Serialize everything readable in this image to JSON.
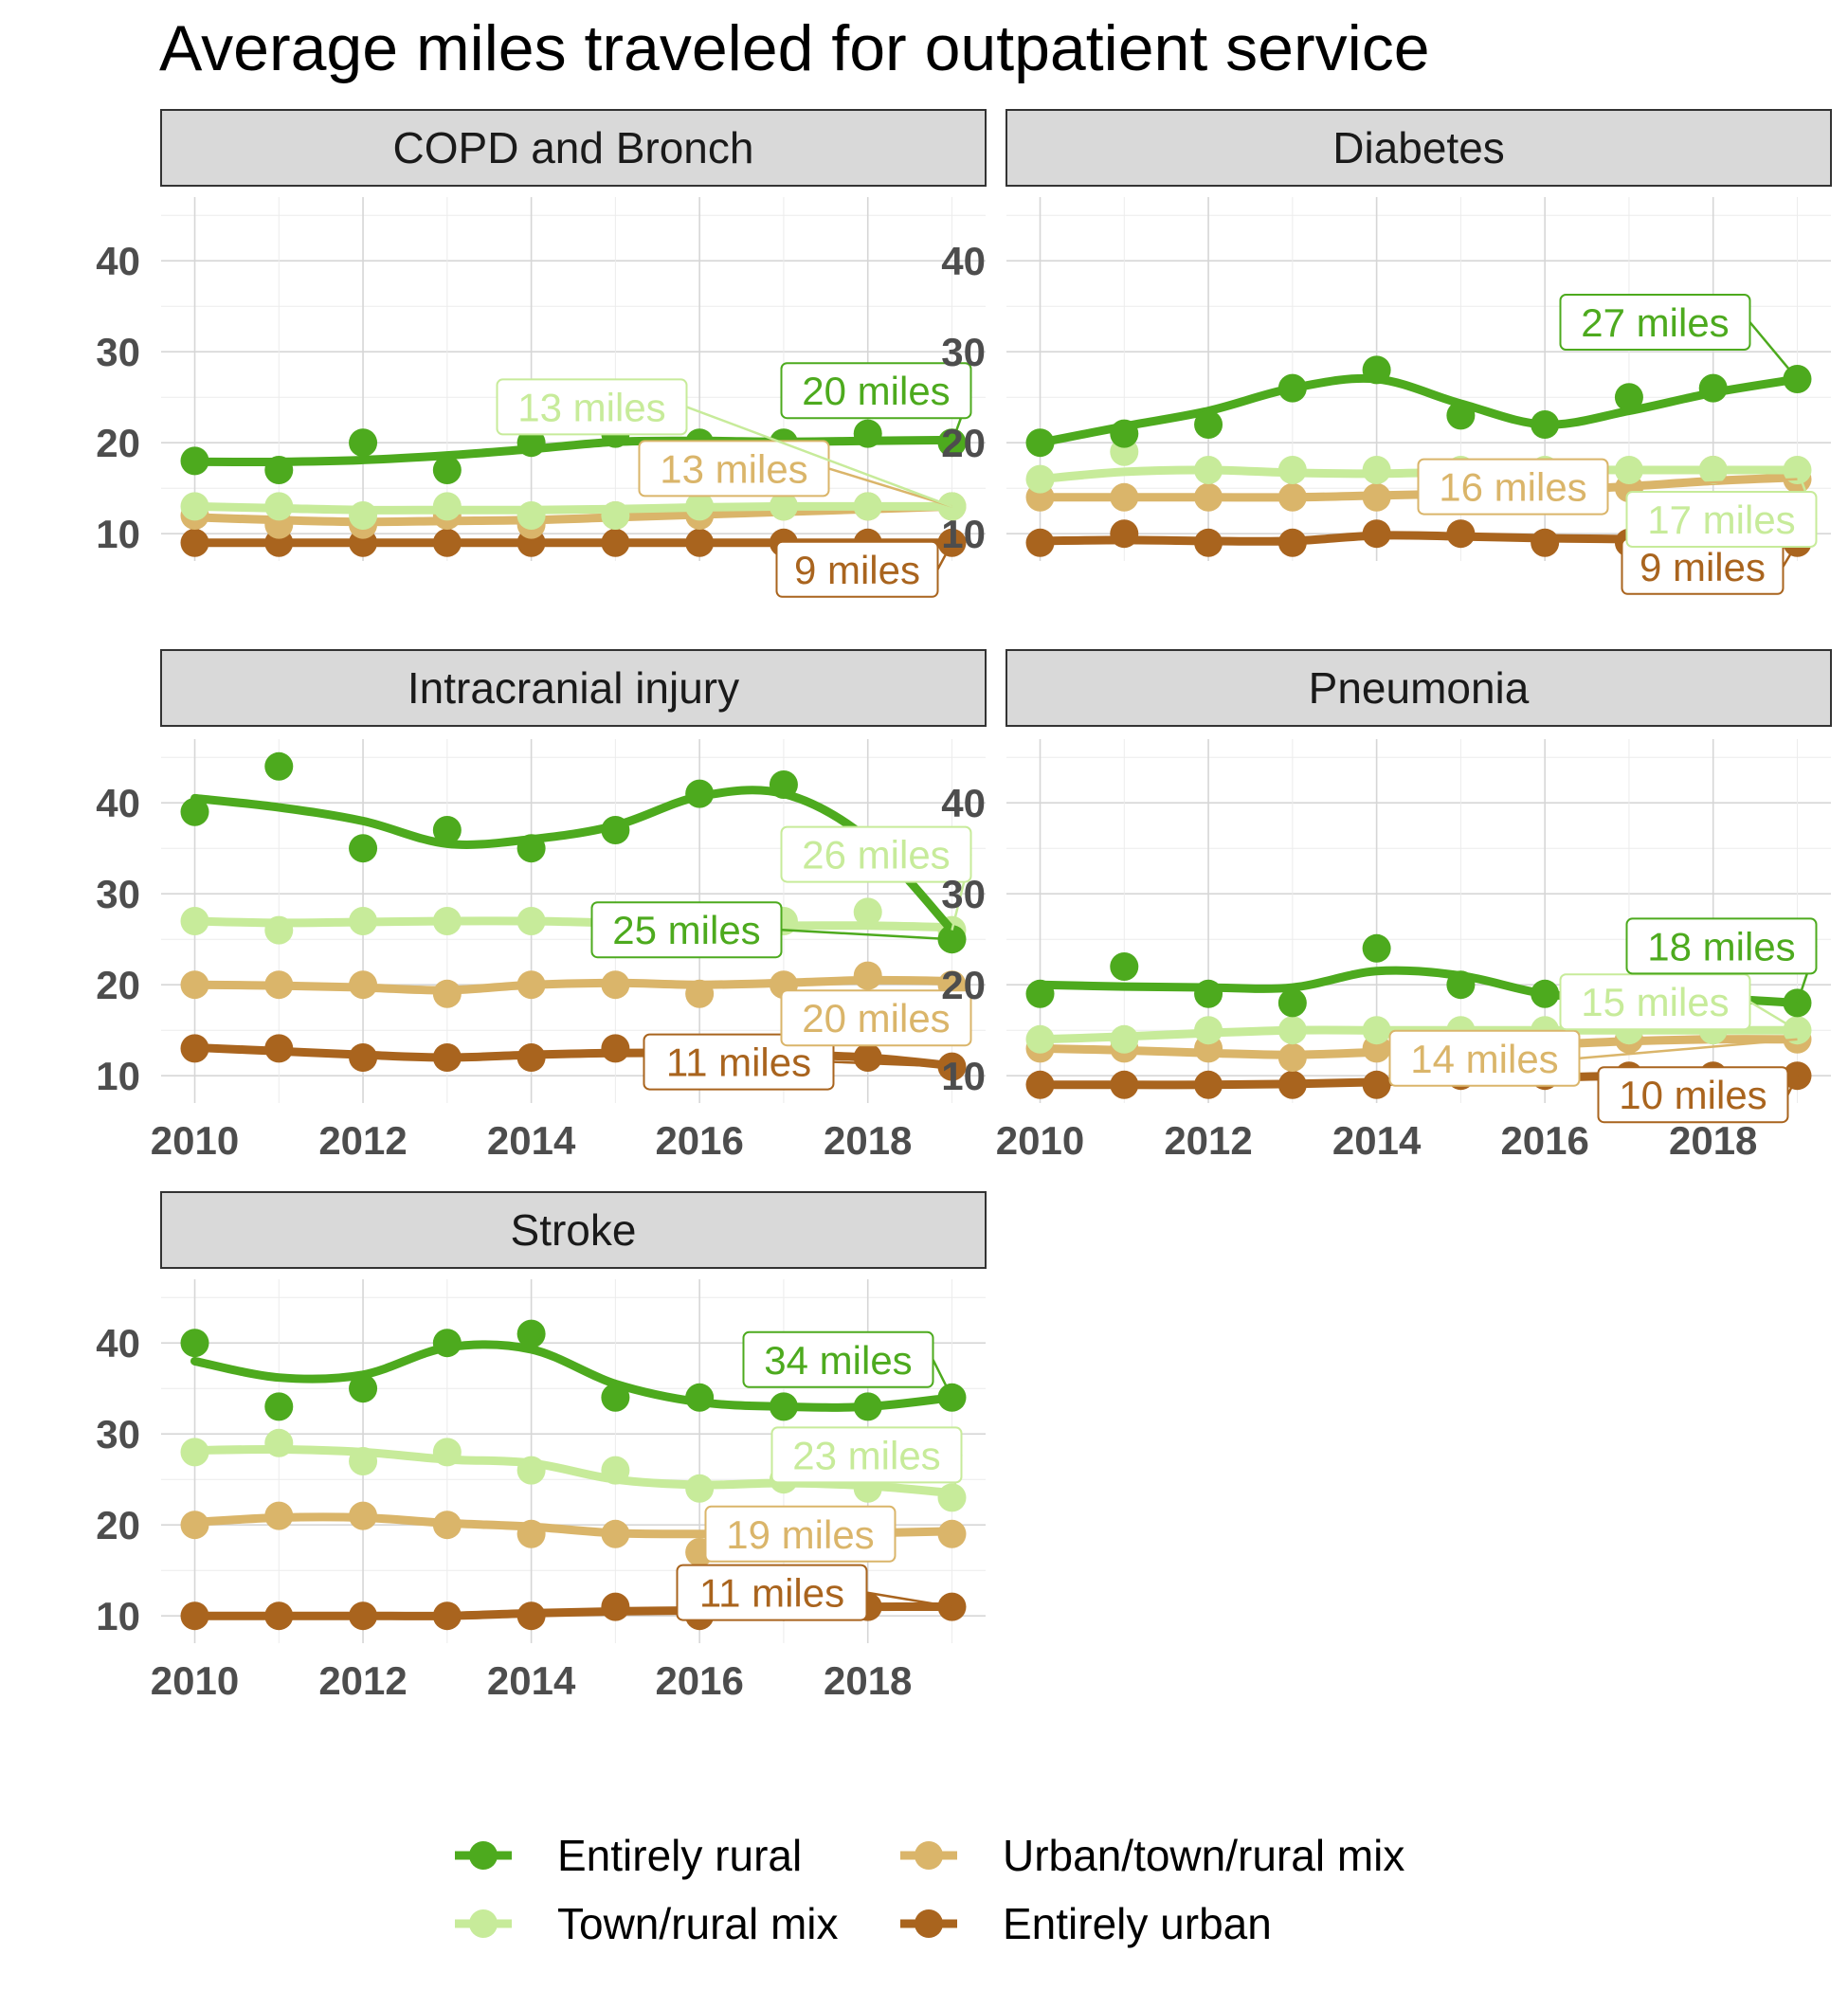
{
  "chart_data": {
    "type": "line",
    "title": "Average miles traveled for outpatient service",
    "xlabel": "",
    "ylabel": "",
    "x": [
      2010,
      2011,
      2012,
      2013,
      2014,
      2015,
      2016,
      2017,
      2018,
      2019
    ],
    "xticks": [
      2010,
      2012,
      2014,
      2016,
      2018
    ],
    "yticks": [
      10,
      20,
      30,
      40
    ],
    "ylim": [
      7,
      47
    ],
    "xlim": [
      2009.6,
      2019.4
    ],
    "grid": true,
    "legend_position": "bottom",
    "legend": [
      {
        "name": "Entirely rural",
        "color": "#4daa1e"
      },
      {
        "name": "Urban/town/rural mix",
        "color": "#dab56a"
      },
      {
        "name": "Town/rural mix",
        "color": "#c7eb9a"
      },
      {
        "name": "Entirely urban",
        "color": "#a9641e"
      }
    ],
    "panels": [
      {
        "title": "COPD and Bronch",
        "series": [
          {
            "name": "Entirely rural",
            "values": [
              18,
              17,
              20,
              17,
              20,
              21,
              20,
              20,
              21,
              20
            ],
            "trend": [
              17.9,
              17.9,
              18.1,
              18.6,
              19.3,
              20.1,
              20.2,
              20.1,
              20.2,
              20.3
            ],
            "label": "20 miles"
          },
          {
            "name": "Town/rural mix",
            "values": [
              13,
              13,
              12,
              13,
              12,
              12,
              13,
              13,
              13,
              13
            ],
            "trend": [
              13.0,
              12.8,
              12.6,
              12.6,
              12.6,
              12.7,
              12.9,
              13.0,
              13.0,
              13.0
            ],
            "label": "13 miles"
          },
          {
            "name": "Urban/town/rural mix",
            "values": [
              12,
              11,
              11,
              12,
              11,
              12,
              12,
              13,
              13,
              13
            ],
            "trend": [
              11.8,
              11.5,
              11.3,
              11.4,
              11.5,
              11.8,
              12.1,
              12.4,
              12.7,
              13.0
            ],
            "label": "13 miles"
          },
          {
            "name": "Entirely urban",
            "values": [
              9,
              9,
              9,
              9,
              9,
              9,
              9,
              9,
              9,
              9
            ],
            "trend": [
              9,
              9,
              9,
              9,
              9,
              9,
              9,
              9,
              9,
              9
            ],
            "label": "9 miles"
          }
        ]
      },
      {
        "title": "Diabetes",
        "series": [
          {
            "name": "Entirely rural",
            "values": [
              20,
              21,
              22,
              26,
              28,
              23,
              22,
              25,
              26,
              27
            ],
            "trend": [
              20.0,
              21.8,
              23.5,
              26.0,
              27.0,
              24.3,
              22.0,
              23.5,
              25.5,
              27.0
            ],
            "label": "27 miles"
          },
          {
            "name": "Town/rural mix",
            "values": [
              16,
              19,
              17,
              17,
              17,
              17,
              17,
              17,
              17,
              17
            ],
            "trend": [
              16.0,
              16.8,
              17.0,
              16.7,
              16.6,
              16.8,
              17.0,
              17.0,
              17.0,
              17.0
            ],
            "label": "17 miles"
          },
          {
            "name": "Urban/town/rural mix",
            "values": [
              14,
              14,
              14,
              14,
              14,
              14,
              14,
              15,
              17,
              16
            ],
            "trend": [
              14.0,
              14.0,
              14.0,
              14.0,
              14.2,
              14.4,
              14.7,
              15.2,
              15.8,
              16.2
            ],
            "label": "16 miles"
          },
          {
            "name": "Entirely urban",
            "values": [
              9,
              10,
              9,
              9,
              10,
              10,
              9,
              9,
              9,
              9
            ],
            "trend": [
              9.2,
              9.3,
              9.2,
              9.2,
              9.8,
              9.7,
              9.5,
              9.4,
              9.3,
              9.1
            ],
            "label": "9 miles"
          }
        ]
      },
      {
        "title": "Intracranial injury",
        "series": [
          {
            "name": "Entirely rural",
            "values": [
              39,
              44,
              35,
              37,
              35,
              37,
              41,
              42,
              35,
              25
            ],
            "trend": [
              40.5,
              39.5,
              38.0,
              35.5,
              36.0,
              37.5,
              40.7,
              41.0,
              36.0,
              26.0
            ],
            "label": "25 miles"
          },
          {
            "name": "Town/rural mix",
            "values": [
              27,
              26,
              27,
              27,
              27,
              27,
              27,
              27,
              28,
              26
            ],
            "trend": [
              27.0,
              26.8,
              26.9,
              27.0,
              27.0,
              26.8,
              26.6,
              26.5,
              26.5,
              26.3
            ],
            "label": "26 miles"
          },
          {
            "name": "Urban/town/rural mix",
            "values": [
              20,
              20,
              20,
              19,
              20,
              20,
              19,
              20,
              21,
              20
            ],
            "trend": [
              20.0,
              19.9,
              19.7,
              19.4,
              20.0,
              20.2,
              20.0,
              20.2,
              20.5,
              20.4
            ],
            "label": "20 miles"
          },
          {
            "name": "Entirely urban",
            "values": [
              13,
              13,
              12,
              12,
              12,
              13,
              12,
              12,
              12,
              11
            ],
            "trend": [
              13.1,
              12.7,
              12.3,
              12.0,
              12.3,
              12.5,
              12.5,
              12.3,
              12.0,
              11.1
            ],
            "label": "11 miles"
          }
        ]
      },
      {
        "title": "Pneumonia",
        "series": [
          {
            "name": "Entirely rural",
            "values": [
              19,
              22,
              19,
              18,
              24,
              20,
              19,
              18,
              19,
              18
            ],
            "trend": [
              20.0,
              19.8,
              19.7,
              19.7,
              21.5,
              21.0,
              19.0,
              18.5,
              18.5,
              18.0
            ],
            "label": "18 miles"
          },
          {
            "name": "Town/rural mix",
            "values": [
              14,
              14,
              15,
              15,
              15,
              15,
              15,
              15,
              15,
              15
            ],
            "trend": [
              14.0,
              14.3,
              14.7,
              15.0,
              15.0,
              15.0,
              15.0,
              15.0,
              15.0,
              15.0
            ],
            "label": "15 miles"
          },
          {
            "name": "Urban/town/rural mix",
            "values": [
              13,
              13,
              13,
              12,
              13,
              14,
              14,
              14,
              15,
              14
            ],
            "trend": [
              13.0,
              12.8,
              12.5,
              12.3,
              12.6,
              13.0,
              13.4,
              13.8,
              14.0,
              14.0
            ],
            "label": "14 miles"
          },
          {
            "name": "Entirely urban",
            "values": [
              9,
              9,
              9,
              9,
              9,
              10,
              10,
              10,
              10,
              10
            ],
            "trend": [
              9.0,
              9.0,
              9.0,
              9.1,
              9.3,
              9.6,
              9.8,
              10.0,
              10.0,
              10.0
            ],
            "label": "10 miles"
          }
        ]
      },
      {
        "title": "Stroke",
        "series": [
          {
            "name": "Entirely rural",
            "values": [
              40,
              33,
              35,
              40,
              41,
              34,
              34,
              33,
              33,
              34
            ],
            "trend": [
              38.0,
              36.2,
              36.5,
              39.5,
              39.3,
              35.5,
              33.5,
              33.0,
              33.0,
              34.0
            ],
            "label": "34 miles"
          },
          {
            "name": "Town/rural mix",
            "values": [
              28,
              29,
              27,
              28,
              26,
              26,
              24,
              25,
              24,
              23
            ],
            "trend": [
              28.2,
              28.3,
              28.0,
              27.2,
              26.8,
              25.0,
              24.4,
              24.6,
              24.3,
              23.5
            ],
            "label": "23 miles"
          },
          {
            "name": "Urban/town/rural mix",
            "values": [
              20,
              21,
              21,
              20,
              19,
              19,
              17,
              19,
              20,
              19
            ],
            "trend": [
              20.3,
              20.8,
              20.8,
              20.2,
              19.8,
              19.1,
              19.0,
              18.9,
              19.1,
              19.3
            ],
            "label": "19 miles"
          },
          {
            "name": "Entirely urban",
            "values": [
              10,
              10,
              10,
              10,
              10,
              11,
              10,
              11,
              11,
              11
            ],
            "trend": [
              10.0,
              10.0,
              10.0,
              10.0,
              10.3,
              10.5,
              10.6,
              10.8,
              11.0,
              11.0
            ],
            "label": "11 miles"
          }
        ]
      }
    ]
  }
}
